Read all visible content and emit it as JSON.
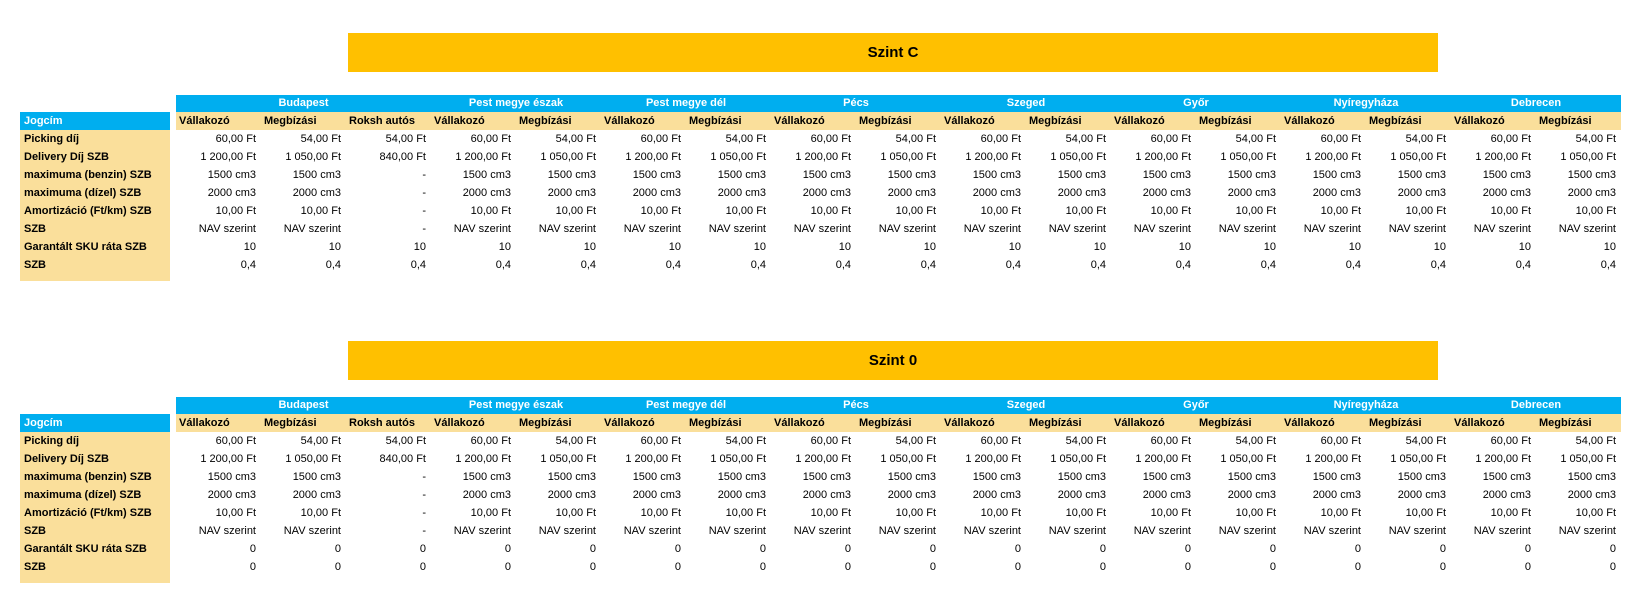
{
  "colors": {
    "banner_bg": "#FFC000",
    "header_blue_bg": "#00AEEF",
    "header_blue_text": "#FFFFFF",
    "header_tan_bg": "#FADF9B",
    "text": "#000000"
  },
  "tables": [
    {
      "title": "Szint C",
      "corner_label": "Jogcím",
      "groups": [
        {
          "name": "Budapest",
          "columns": [
            "Vállakozó",
            "Megbízási",
            "Roksh autós"
          ]
        },
        {
          "name": "Pest megye észak",
          "columns": [
            "Vállakozó",
            "Megbízási"
          ]
        },
        {
          "name": "Pest megye dél",
          "columns": [
            "Vállakozó",
            "Megbízási"
          ]
        },
        {
          "name": "Pécs",
          "columns": [
            "Vállakozó",
            "Megbízási"
          ]
        },
        {
          "name": "Szeged",
          "columns": [
            "Vállakozó",
            "Megbízási"
          ]
        },
        {
          "name": "Győr",
          "columns": [
            "Vállakozó",
            "Megbízási"
          ]
        },
        {
          "name": "Nyíregyháza",
          "columns": [
            "Vállakozó",
            "Megbízási"
          ]
        },
        {
          "name": "Debrecen",
          "columns": [
            "Vállakozó",
            "Megbízási"
          ]
        }
      ],
      "rows": [
        {
          "label": "Picking díj",
          "values": [
            "60,00 Ft",
            "54,00 Ft",
            "54,00 Ft",
            "60,00 Ft",
            "54,00 Ft",
            "60,00 Ft",
            "54,00 Ft",
            "60,00 Ft",
            "54,00 Ft",
            "60,00 Ft",
            "54,00 Ft",
            "60,00 Ft",
            "54,00 Ft",
            "60,00 Ft",
            "54,00 Ft",
            "60,00 Ft",
            "54,00 Ft"
          ]
        },
        {
          "label": "Delivery Díj SZB",
          "values": [
            "1 200,00 Ft",
            "1 050,00 Ft",
            "840,00 Ft",
            "1 200,00 Ft",
            "1 050,00 Ft",
            "1 200,00 Ft",
            "1 050,00 Ft",
            "1 200,00 Ft",
            "1 050,00 Ft",
            "1 200,00 Ft",
            "1 050,00 Ft",
            "1 200,00 Ft",
            "1 050,00 Ft",
            "1 200,00 Ft",
            "1 050,00 Ft",
            "1 200,00 Ft",
            "1 050,00 Ft"
          ]
        },
        {
          "label": "maximuma (benzin) SZB",
          "values": [
            "1500 cm3",
            "1500 cm3",
            "-",
            "1500 cm3",
            "1500 cm3",
            "1500 cm3",
            "1500 cm3",
            "1500 cm3",
            "1500 cm3",
            "1500 cm3",
            "1500 cm3",
            "1500 cm3",
            "1500 cm3",
            "1500 cm3",
            "1500 cm3",
            "1500 cm3",
            "1500 cm3"
          ]
        },
        {
          "label": "maximuma (dízel) SZB",
          "values": [
            "2000 cm3",
            "2000 cm3",
            "-",
            "2000 cm3",
            "2000 cm3",
            "2000 cm3",
            "2000 cm3",
            "2000 cm3",
            "2000 cm3",
            "2000 cm3",
            "2000 cm3",
            "2000 cm3",
            "2000 cm3",
            "2000 cm3",
            "2000 cm3",
            "2000 cm3",
            "2000 cm3"
          ]
        },
        {
          "label": "Amortizáció (Ft/km) SZB",
          "values": [
            "10,00 Ft",
            "10,00 Ft",
            "-",
            "10,00 Ft",
            "10,00 Ft",
            "10,00 Ft",
            "10,00 Ft",
            "10,00 Ft",
            "10,00 Ft",
            "10,00 Ft",
            "10,00 Ft",
            "10,00 Ft",
            "10,00 Ft",
            "10,00 Ft",
            "10,00 Ft",
            "10,00 Ft",
            "10,00 Ft"
          ]
        },
        {
          "label": "SZB",
          "values": [
            "NAV szerint",
            "NAV szerint",
            "-",
            "NAV szerint",
            "NAV szerint",
            "NAV szerint",
            "NAV szerint",
            "NAV szerint",
            "NAV szerint",
            "NAV szerint",
            "NAV szerint",
            "NAV szerint",
            "NAV szerint",
            "NAV szerint",
            "NAV szerint",
            "NAV szerint",
            "NAV szerint"
          ]
        },
        {
          "label": "Garantált SKU ráta SZB",
          "values": [
            "10",
            "10",
            "10",
            "10",
            "10",
            "10",
            "10",
            "10",
            "10",
            "10",
            "10",
            "10",
            "10",
            "10",
            "10",
            "10",
            "10"
          ]
        },
        {
          "label": "SZB",
          "values": [
            "0,4",
            "0,4",
            "0,4",
            "0,4",
            "0,4",
            "0,4",
            "0,4",
            "0,4",
            "0,4",
            "0,4",
            "0,4",
            "0,4",
            "0,4",
            "0,4",
            "0,4",
            "0,4",
            "0,4"
          ]
        }
      ]
    },
    {
      "title": "Szint 0",
      "corner_label": "Jogcím",
      "groups": [
        {
          "name": "Budapest",
          "columns": [
            "Vállakozó",
            "Megbízási",
            "Roksh autós"
          ]
        },
        {
          "name": "Pest megye észak",
          "columns": [
            "Vállakozó",
            "Megbízási"
          ]
        },
        {
          "name": "Pest megye dél",
          "columns": [
            "Vállakozó",
            "Megbízási"
          ]
        },
        {
          "name": "Pécs",
          "columns": [
            "Vállakozó",
            "Megbízási"
          ]
        },
        {
          "name": "Szeged",
          "columns": [
            "Vállakozó",
            "Megbízási"
          ]
        },
        {
          "name": "Győr",
          "columns": [
            "Vállakozó",
            "Megbízási"
          ]
        },
        {
          "name": "Nyíregyháza",
          "columns": [
            "Vállakozó",
            "Megbízási"
          ]
        },
        {
          "name": "Debrecen",
          "columns": [
            "Vállakozó",
            "Megbízási"
          ]
        }
      ],
      "rows": [
        {
          "label": "Picking díj",
          "values": [
            "60,00 Ft",
            "54,00 Ft",
            "54,00 Ft",
            "60,00 Ft",
            "54,00 Ft",
            "60,00 Ft",
            "54,00 Ft",
            "60,00 Ft",
            "54,00 Ft",
            "60,00 Ft",
            "54,00 Ft",
            "60,00 Ft",
            "54,00 Ft",
            "60,00 Ft",
            "54,00 Ft",
            "60,00 Ft",
            "54,00 Ft"
          ]
        },
        {
          "label": "Delivery Díj SZB",
          "values": [
            "1 200,00 Ft",
            "1 050,00 Ft",
            "840,00 Ft",
            "1 200,00 Ft",
            "1 050,00 Ft",
            "1 200,00 Ft",
            "1 050,00 Ft",
            "1 200,00 Ft",
            "1 050,00 Ft",
            "1 200,00 Ft",
            "1 050,00 Ft",
            "1 200,00 Ft",
            "1 050,00 Ft",
            "1 200,00 Ft",
            "1 050,00 Ft",
            "1 200,00 Ft",
            "1 050,00 Ft"
          ]
        },
        {
          "label": "maximuma (benzin) SZB",
          "values": [
            "1500 cm3",
            "1500 cm3",
            "-",
            "1500 cm3",
            "1500 cm3",
            "1500 cm3",
            "1500 cm3",
            "1500 cm3",
            "1500 cm3",
            "1500 cm3",
            "1500 cm3",
            "1500 cm3",
            "1500 cm3",
            "1500 cm3",
            "1500 cm3",
            "1500 cm3",
            "1500 cm3"
          ]
        },
        {
          "label": "maximuma (dízel) SZB",
          "values": [
            "2000 cm3",
            "2000 cm3",
            "-",
            "2000 cm3",
            "2000 cm3",
            "2000 cm3",
            "2000 cm3",
            "2000 cm3",
            "2000 cm3",
            "2000 cm3",
            "2000 cm3",
            "2000 cm3",
            "2000 cm3",
            "2000 cm3",
            "2000 cm3",
            "2000 cm3",
            "2000 cm3"
          ]
        },
        {
          "label": "Amortizáció (Ft/km) SZB",
          "values": [
            "10,00 Ft",
            "10,00 Ft",
            "-",
            "10,00 Ft",
            "10,00 Ft",
            "10,00 Ft",
            "10,00 Ft",
            "10,00 Ft",
            "10,00 Ft",
            "10,00 Ft",
            "10,00 Ft",
            "10,00 Ft",
            "10,00 Ft",
            "10,00 Ft",
            "10,00 Ft",
            "10,00 Ft",
            "10,00 Ft"
          ]
        },
        {
          "label": "SZB",
          "values": [
            "NAV szerint",
            "NAV szerint",
            "-",
            "NAV szerint",
            "NAV szerint",
            "NAV szerint",
            "NAV szerint",
            "NAV szerint",
            "NAV szerint",
            "NAV szerint",
            "NAV szerint",
            "NAV szerint",
            "NAV szerint",
            "NAV szerint",
            "NAV szerint",
            "NAV szerint",
            "NAV szerint"
          ]
        },
        {
          "label": "Garantált SKU ráta SZB",
          "values": [
            "0",
            "0",
            "0",
            "0",
            "0",
            "0",
            "0",
            "0",
            "0",
            "0",
            "0",
            "0",
            "0",
            "0",
            "0",
            "0",
            "0"
          ]
        },
        {
          "label": "SZB",
          "values": [
            "0",
            "0",
            "0",
            "0",
            "0",
            "0",
            "0",
            "0",
            "0",
            "0",
            "0",
            "0",
            "0",
            "0",
            "0",
            "0",
            "0"
          ]
        }
      ]
    }
  ]
}
